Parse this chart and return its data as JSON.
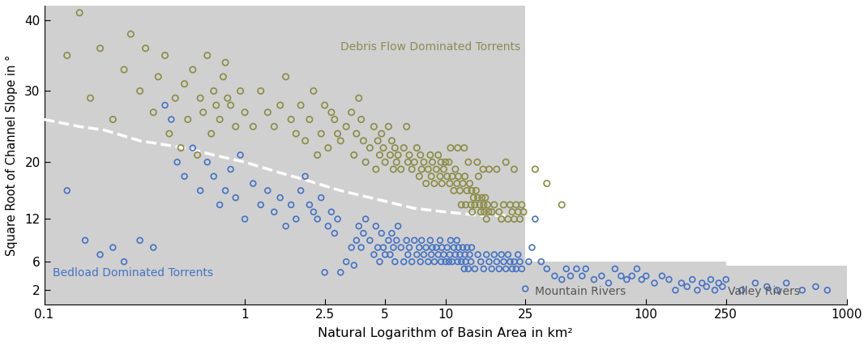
{
  "xlabel": "Natural Logarithm of Basin Area in km²",
  "ylabel": "Square Root of Channel Slope in °",
  "yticks_labels": [
    2,
    6,
    12,
    20,
    30,
    40
  ],
  "xticks_labels": [
    0.1,
    1,
    2.5,
    5,
    10,
    25,
    100,
    250,
    1000
  ],
  "xlim": [
    0.1,
    1000
  ],
  "ymax": 42,
  "region_color": "#d0d0d0",
  "torrent_region": {
    "xmin": 0.1,
    "xmax": 25,
    "ymin": 0,
    "ymax": 42
  },
  "mountain_region": {
    "xmin": 25,
    "xmax": 250,
    "ymin": 0,
    "ymax": 6.0
  },
  "valley_region": {
    "xmin": 250,
    "xmax": 1000,
    "ymin": 0,
    "ymax": 5.5
  },
  "dashed_line": {
    "x": [
      0.1,
      0.15,
      0.2,
      0.3,
      0.5,
      0.7,
      1.0,
      1.5,
      2.0,
      3.0,
      5.0,
      7.0,
      10.0,
      15.0,
      20.0,
      25.0
    ],
    "y": [
      26,
      25,
      24.5,
      23,
      22,
      21,
      20,
      18.5,
      17.5,
      16,
      14.5,
      13.5,
      13,
      12.5,
      12.5,
      12.5
    ]
  },
  "debris_flow_color": "#8B8B45",
  "bedload_color": "#4472C4",
  "label_debris": "Debris Flow Dominated Torrents",
  "label_bedload": "Bedload Dominated Torrents",
  "label_mountain": "Mountain Rivers",
  "label_valley": "Valley Rivers",
  "debris_flow_points": [
    [
      0.13,
      35
    ],
    [
      0.15,
      41
    ],
    [
      0.17,
      29
    ],
    [
      0.19,
      36
    ],
    [
      0.22,
      26
    ],
    [
      0.25,
      33
    ],
    [
      0.27,
      38
    ],
    [
      0.3,
      30
    ],
    [
      0.32,
      36
    ],
    [
      0.35,
      27
    ],
    [
      0.37,
      32
    ],
    [
      0.4,
      35
    ],
    [
      0.42,
      24
    ],
    [
      0.45,
      29
    ],
    [
      0.48,
      22
    ],
    [
      0.5,
      31
    ],
    [
      0.52,
      26
    ],
    [
      0.55,
      33
    ],
    [
      0.58,
      21
    ],
    [
      0.6,
      29
    ],
    [
      0.62,
      27
    ],
    [
      0.65,
      35
    ],
    [
      0.68,
      24
    ],
    [
      0.7,
      30
    ],
    [
      0.72,
      28
    ],
    [
      0.75,
      26
    ],
    [
      0.78,
      32
    ],
    [
      0.8,
      34
    ],
    [
      0.82,
      29
    ],
    [
      0.85,
      28
    ],
    [
      0.9,
      25
    ],
    [
      0.95,
      30
    ],
    [
      1.0,
      27
    ],
    [
      1.1,
      25
    ],
    [
      1.2,
      30
    ],
    [
      1.3,
      27
    ],
    [
      1.4,
      25
    ],
    [
      1.5,
      28
    ],
    [
      1.6,
      32
    ],
    [
      1.7,
      26
    ],
    [
      1.8,
      24
    ],
    [
      1.9,
      28
    ],
    [
      2.0,
      23
    ],
    [
      2.1,
      26
    ],
    [
      2.2,
      30
    ],
    [
      2.3,
      21
    ],
    [
      2.4,
      24
    ],
    [
      2.5,
      28
    ],
    [
      2.6,
      22
    ],
    [
      2.7,
      27
    ],
    [
      2.8,
      26
    ],
    [
      2.9,
      24
    ],
    [
      3.0,
      23
    ],
    [
      3.2,
      25
    ],
    [
      3.4,
      27
    ],
    [
      3.5,
      21
    ],
    [
      3.6,
      24
    ],
    [
      3.7,
      29
    ],
    [
      3.8,
      26
    ],
    [
      3.9,
      23
    ],
    [
      4.0,
      20
    ],
    [
      4.2,
      22
    ],
    [
      4.4,
      25
    ],
    [
      4.5,
      19
    ],
    [
      4.6,
      23
    ],
    [
      4.7,
      21
    ],
    [
      4.8,
      24
    ],
    [
      4.9,
      22
    ],
    [
      5.0,
      20
    ],
    [
      5.2,
      25
    ],
    [
      5.3,
      21
    ],
    [
      5.4,
      23
    ],
    [
      5.5,
      19
    ],
    [
      5.6,
      22
    ],
    [
      5.7,
      20
    ],
    [
      5.8,
      21
    ],
    [
      6.0,
      19
    ],
    [
      6.2,
      22
    ],
    [
      6.4,
      25
    ],
    [
      6.5,
      20
    ],
    [
      6.6,
      21
    ],
    [
      6.8,
      19
    ],
    [
      7.0,
      20
    ],
    [
      7.2,
      22
    ],
    [
      7.4,
      18
    ],
    [
      7.5,
      21
    ],
    [
      7.6,
      19
    ],
    [
      7.8,
      20
    ],
    [
      8.0,
      17
    ],
    [
      8.2,
      19
    ],
    [
      8.4,
      21
    ],
    [
      8.5,
      18
    ],
    [
      8.6,
      20
    ],
    [
      8.8,
      17
    ],
    [
      9.0,
      19
    ],
    [
      9.2,
      21
    ],
    [
      9.4,
      18
    ],
    [
      9.5,
      20
    ],
    [
      9.6,
      17
    ],
    [
      9.8,
      19
    ],
    [
      10.0,
      20
    ],
    [
      10.2,
      18
    ],
    [
      10.4,
      20
    ],
    [
      10.5,
      17
    ],
    [
      10.6,
      22
    ],
    [
      10.8,
      18
    ],
    [
      11.0,
      16
    ],
    [
      11.2,
      19
    ],
    [
      11.4,
      17
    ],
    [
      11.5,
      22
    ],
    [
      11.6,
      18
    ],
    [
      11.8,
      16
    ],
    [
      12.0,
      14
    ],
    [
      12.2,
      17
    ],
    [
      12.4,
      22
    ],
    [
      12.5,
      18
    ],
    [
      12.6,
      14
    ],
    [
      12.8,
      16
    ],
    [
      13.0,
      20
    ],
    [
      13.2,
      17
    ],
    [
      13.4,
      14
    ],
    [
      13.5,
      16
    ],
    [
      13.6,
      13
    ],
    [
      13.8,
      15
    ],
    [
      14.0,
      14
    ],
    [
      14.2,
      16
    ],
    [
      14.4,
      20
    ],
    [
      14.5,
      15
    ],
    [
      14.6,
      18
    ],
    [
      14.8,
      14
    ],
    [
      15.0,
      13
    ],
    [
      15.2,
      15
    ],
    [
      15.4,
      19
    ],
    [
      15.5,
      14
    ],
    [
      15.6,
      13
    ],
    [
      15.8,
      15
    ],
    [
      16.0,
      12
    ],
    [
      16.2,
      14
    ],
    [
      16.4,
      13
    ],
    [
      16.5,
      19
    ],
    [
      17.0,
      13
    ],
    [
      17.5,
      14
    ],
    [
      18.0,
      19
    ],
    [
      18.5,
      13
    ],
    [
      19.0,
      12
    ],
    [
      19.5,
      14
    ],
    [
      20.0,
      20
    ],
    [
      20.5,
      12
    ],
    [
      21.0,
      14
    ],
    [
      21.5,
      13
    ],
    [
      22.0,
      19
    ],
    [
      22.5,
      14
    ],
    [
      23.0,
      13
    ],
    [
      23.5,
      12
    ],
    [
      24.0,
      14
    ],
    [
      24.5,
      13
    ],
    [
      28.0,
      19
    ],
    [
      32.0,
      17
    ],
    [
      38.0,
      14
    ],
    [
      22.0,
      12
    ]
  ],
  "bedload_points": [
    [
      0.13,
      16
    ],
    [
      0.16,
      9
    ],
    [
      0.19,
      7
    ],
    [
      0.22,
      8
    ],
    [
      0.25,
      6
    ],
    [
      0.3,
      9
    ],
    [
      0.35,
      8
    ],
    [
      0.4,
      28
    ],
    [
      0.43,
      26
    ],
    [
      0.46,
      20
    ],
    [
      0.5,
      18
    ],
    [
      0.55,
      22
    ],
    [
      0.6,
      16
    ],
    [
      0.65,
      20
    ],
    [
      0.7,
      18
    ],
    [
      0.75,
      14
    ],
    [
      0.8,
      16
    ],
    [
      0.85,
      19
    ],
    [
      0.9,
      15
    ],
    [
      0.95,
      21
    ],
    [
      1.0,
      12
    ],
    [
      1.1,
      17
    ],
    [
      1.2,
      14
    ],
    [
      1.3,
      16
    ],
    [
      1.4,
      13
    ],
    [
      1.5,
      15
    ],
    [
      1.6,
      11
    ],
    [
      1.7,
      14
    ],
    [
      1.8,
      12
    ],
    [
      1.9,
      16
    ],
    [
      2.0,
      18
    ],
    [
      2.1,
      14
    ],
    [
      2.2,
      13
    ],
    [
      2.3,
      12
    ],
    [
      2.4,
      15
    ],
    [
      2.5,
      4.5
    ],
    [
      2.6,
      11
    ],
    [
      2.7,
      13
    ],
    [
      2.8,
      10
    ],
    [
      2.9,
      12
    ],
    [
      3.0,
      4.5
    ],
    [
      3.2,
      6
    ],
    [
      3.4,
      8
    ],
    [
      3.5,
      5.5
    ],
    [
      3.6,
      9
    ],
    [
      3.7,
      11
    ],
    [
      3.8,
      8
    ],
    [
      3.9,
      10
    ],
    [
      4.0,
      12
    ],
    [
      4.2,
      9
    ],
    [
      4.4,
      7
    ],
    [
      4.5,
      11
    ],
    [
      4.6,
      8
    ],
    [
      4.7,
      6
    ],
    [
      4.8,
      10
    ],
    [
      4.9,
      8
    ],
    [
      5.0,
      7
    ],
    [
      5.2,
      9
    ],
    [
      5.3,
      7
    ],
    [
      5.4,
      10
    ],
    [
      5.5,
      8
    ],
    [
      5.6,
      6
    ],
    [
      5.7,
      9
    ],
    [
      5.8,
      11
    ],
    [
      6.0,
      8
    ],
    [
      6.2,
      6
    ],
    [
      6.4,
      9
    ],
    [
      6.5,
      7
    ],
    [
      6.6,
      8
    ],
    [
      6.8,
      6
    ],
    [
      7.0,
      9
    ],
    [
      7.2,
      7
    ],
    [
      7.4,
      8
    ],
    [
      7.5,
      6
    ],
    [
      7.6,
      9
    ],
    [
      7.8,
      7
    ],
    [
      8.0,
      8
    ],
    [
      8.2,
      6
    ],
    [
      8.4,
      9
    ],
    [
      8.5,
      7
    ],
    [
      8.6,
      8
    ],
    [
      8.8,
      6
    ],
    [
      9.0,
      8
    ],
    [
      9.2,
      7
    ],
    [
      9.4,
      9
    ],
    [
      9.5,
      6
    ],
    [
      9.6,
      8
    ],
    [
      9.8,
      7
    ],
    [
      10.0,
      6
    ],
    [
      10.2,
      8
    ],
    [
      10.4,
      6
    ],
    [
      10.5,
      7
    ],
    [
      10.6,
      9
    ],
    [
      10.8,
      6
    ],
    [
      11.0,
      8
    ],
    [
      11.2,
      7
    ],
    [
      11.4,
      9
    ],
    [
      11.5,
      6
    ],
    [
      11.6,
      8
    ],
    [
      11.8,
      7
    ],
    [
      12.0,
      6
    ],
    [
      12.2,
      8
    ],
    [
      12.4,
      5
    ],
    [
      12.5,
      7
    ],
    [
      12.6,
      6
    ],
    [
      12.8,
      8
    ],
    [
      13.0,
      5
    ],
    [
      13.2,
      7
    ],
    [
      13.4,
      6
    ],
    [
      13.5,
      8
    ],
    [
      14.0,
      5
    ],
    [
      14.5,
      7
    ],
    [
      15.0,
      6
    ],
    [
      15.5,
      5
    ],
    [
      16.0,
      7
    ],
    [
      16.5,
      6
    ],
    [
      17.0,
      5
    ],
    [
      17.5,
      7
    ],
    [
      18.0,
      6
    ],
    [
      18.5,
      5
    ],
    [
      19.0,
      7
    ],
    [
      19.5,
      6
    ],
    [
      20.0,
      5
    ],
    [
      20.5,
      7
    ],
    [
      21.0,
      6
    ],
    [
      21.5,
      5
    ],
    [
      22.0,
      6
    ],
    [
      22.5,
      5
    ],
    [
      23.0,
      7
    ],
    [
      23.5,
      6
    ],
    [
      24.0,
      5
    ],
    [
      25.0,
      2.2
    ],
    [
      26.0,
      6
    ],
    [
      27.0,
      8
    ],
    [
      28.0,
      12
    ],
    [
      30.0,
      6
    ],
    [
      32.0,
      5
    ],
    [
      35.0,
      4
    ],
    [
      38.0,
      3.5
    ],
    [
      40.0,
      5
    ],
    [
      42.0,
      4
    ],
    [
      45.0,
      5
    ],
    [
      48.0,
      4
    ],
    [
      50.0,
      5
    ],
    [
      55.0,
      3.5
    ],
    [
      60.0,
      4
    ],
    [
      65.0,
      3
    ],
    [
      70.0,
      5
    ],
    [
      75.0,
      4
    ],
    [
      80.0,
      3.5
    ],
    [
      85.0,
      4
    ],
    [
      90.0,
      5
    ],
    [
      95.0,
      3.5
    ],
    [
      100.0,
      4
    ],
    [
      110.0,
      3
    ],
    [
      120.0,
      4
    ],
    [
      130.0,
      3.5
    ],
    [
      140.0,
      2
    ],
    [
      150.0,
      3
    ],
    [
      160.0,
      2.5
    ],
    [
      170.0,
      3.5
    ],
    [
      180.0,
      2
    ],
    [
      190.0,
      3
    ],
    [
      200.0,
      2.5
    ],
    [
      210.0,
      3.5
    ],
    [
      220.0,
      2
    ],
    [
      230.0,
      3
    ],
    [
      240.0,
      2.5
    ],
    [
      250.0,
      3.5
    ],
    [
      300.0,
      2
    ],
    [
      350.0,
      3
    ],
    [
      400.0,
      2.5
    ],
    [
      450.0,
      2
    ],
    [
      500.0,
      3
    ],
    [
      600.0,
      2
    ],
    [
      700.0,
      2.5
    ],
    [
      800.0,
      2
    ]
  ]
}
